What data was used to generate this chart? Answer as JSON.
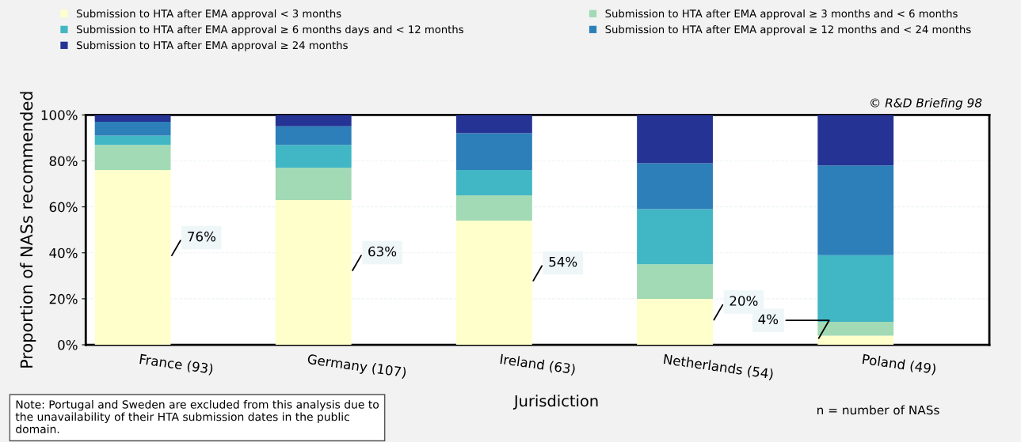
{
  "chart_data": {
    "type": "bar",
    "stacked": true,
    "categories": [
      "France (93)",
      "Germany (107)",
      "Ireland (63)",
      "Netherlands (54)",
      "Poland (49)"
    ],
    "series": [
      {
        "name": "Submission to HTA after EMA approval < 3 months",
        "color": "#ffffcc",
        "values": [
          76,
          63,
          54,
          20,
          4
        ],
        "value_labels": [
          "76%",
          "63%",
          "54%",
          "20%",
          "4%"
        ]
      },
      {
        "name": "Submission to HTA after EMA approval ≥ 3 months and < 6 months",
        "color": "#a1dab4",
        "values": [
          11,
          14,
          11,
          15,
          6
        ]
      },
      {
        "name": "Submission to HTA after EMA approval ≥ 6 months days and < 12 months",
        "color": "#41b6c4",
        "values": [
          4,
          10,
          11,
          24,
          29
        ]
      },
      {
        "name": "Submission to HTA after EMA approval ≥ 12 months and < 24 months",
        "color": "#2c7fb8",
        "values": [
          6,
          8,
          16,
          20,
          39
        ]
      },
      {
        "name": "Submission to HTA after EMA approval ≥ 24 months",
        "color": "#253494",
        "values": [
          3,
          5,
          8,
          21,
          22
        ]
      }
    ],
    "ylabel": "Proportion of NASs recommended",
    "xlabel": "Jurisdiction",
    "ylim": [
      0,
      100
    ],
    "yticks": [
      {
        "value": 0,
        "label": "0%"
      },
      {
        "value": 20,
        "label": "20%"
      },
      {
        "value": 40,
        "label": "40%"
      },
      {
        "value": 60,
        "label": "60%"
      },
      {
        "value": 80,
        "label": "80%"
      },
      {
        "value": 100,
        "label": "100%"
      }
    ],
    "grid": "y",
    "legend": "top",
    "annotations": [
      "© R&D Briefing 98",
      "Note: Portugal and Sweden are excluded from this analysis due to the unavailability of their HTA submission dates in the public domain.",
      "n = number of NASs"
    ]
  }
}
